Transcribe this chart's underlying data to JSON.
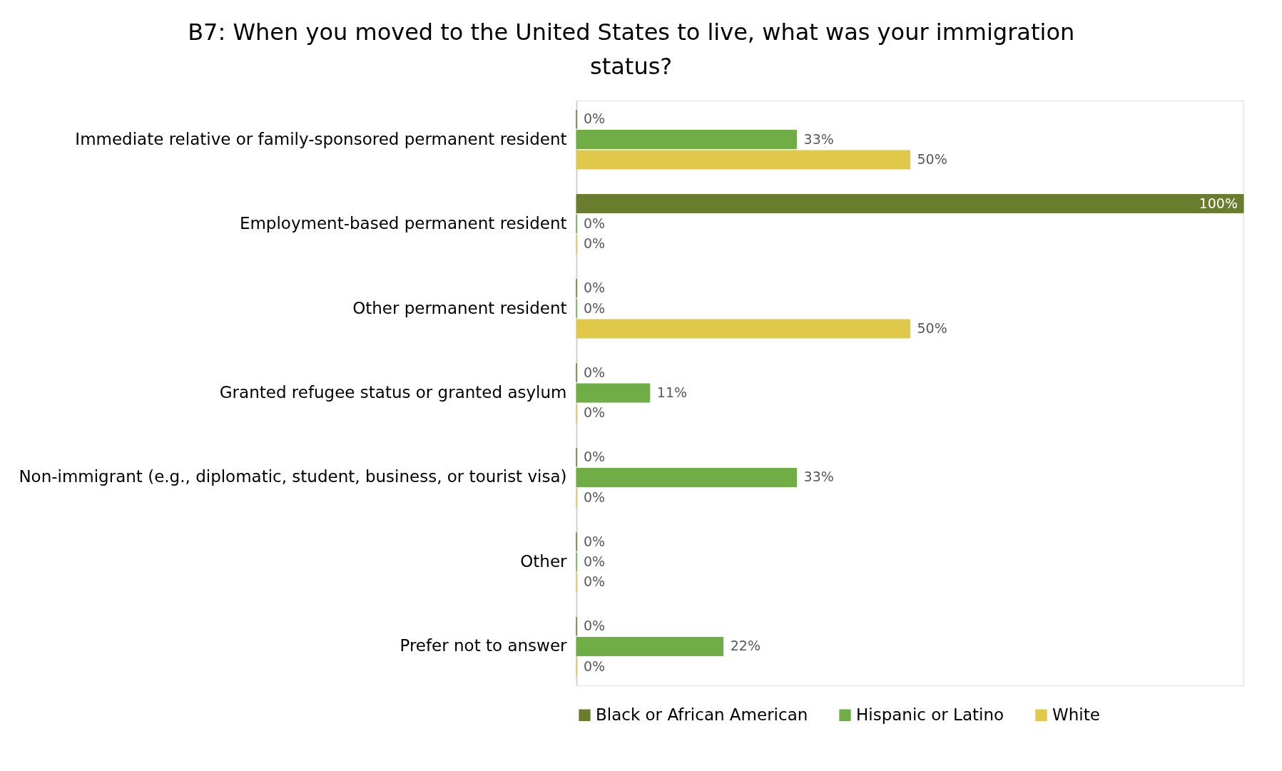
{
  "chart_data": {
    "type": "bar",
    "orientation": "horizontal",
    "title": "B7: When you moved to the United States to live, what was your immigration status?",
    "categories": [
      "Immediate relative or family-sponsored permanent resident",
      "Employment-based permanent resident",
      "Other permanent resident",
      "Granted refugee status or granted asylum",
      "Non-immigrant (e.g., diplomatic, student, business, or tourist visa)",
      "Other",
      "Prefer not to answer"
    ],
    "series": [
      {
        "name": "Black or African American",
        "color": "#6a7d2f",
        "values": [
          0,
          100,
          0,
          0,
          0,
          0,
          0
        ],
        "value_labels": [
          "0%",
          "100%",
          "0%",
          "0%",
          "0%",
          "0%",
          "0%"
        ]
      },
      {
        "name": "Hispanic or Latino",
        "color": "#70ad47",
        "values": [
          33,
          0,
          0,
          11,
          33,
          0,
          22
        ],
        "value_labels": [
          "33%",
          "0%",
          "0%",
          "11%",
          "33%",
          "0%",
          "22%"
        ]
      },
      {
        "name": "White",
        "color": "#dfc84a",
        "values": [
          50,
          0,
          50,
          0,
          0,
          0,
          0
        ],
        "value_labels": [
          "50%",
          "0%",
          "50%",
          "0%",
          "0%",
          "0%",
          "0%"
        ]
      }
    ],
    "legend": "bottom",
    "grid": false
  }
}
